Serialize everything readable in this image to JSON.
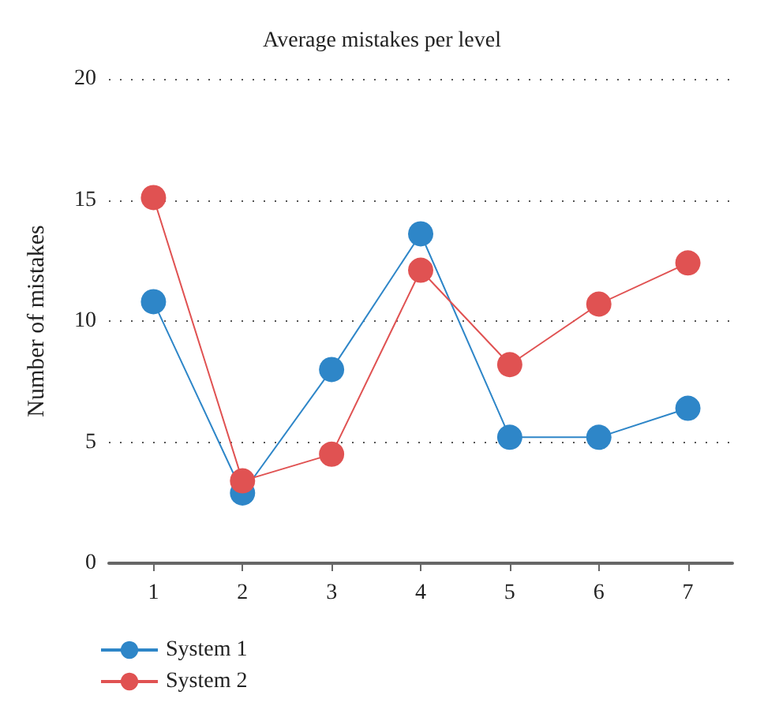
{
  "chart_data": {
    "type": "line",
    "title": "Average mistakes per level",
    "ylabel": "Number of mistakes",
    "categories": [
      "1",
      "2",
      "3",
      "4",
      "5",
      "6",
      "7"
    ],
    "series": [
      {
        "name": "System 1",
        "color": "#2e86c8",
        "values": [
          10.8,
          2.9,
          8.0,
          13.6,
          5.2,
          5.2,
          6.4
        ]
      },
      {
        "name": "System 2",
        "color": "#e05252",
        "values": [
          15.1,
          3.4,
          4.5,
          12.1,
          8.2,
          10.7,
          12.4
        ]
      }
    ],
    "ylim": [
      0,
      20
    ],
    "yticks": [
      0,
      5,
      10,
      15,
      20
    ],
    "grid": "y",
    "legend": "bottom left",
    "marker": "circle",
    "line_style": "solid"
  }
}
